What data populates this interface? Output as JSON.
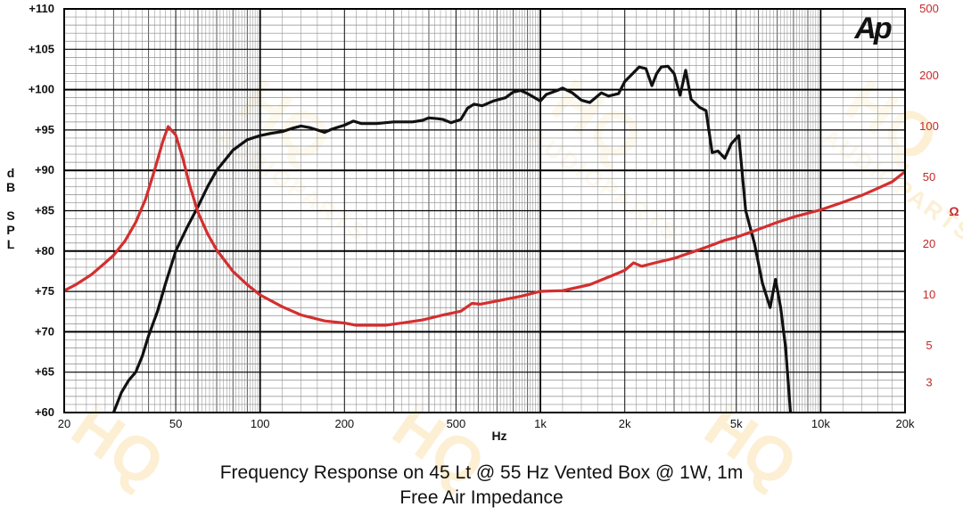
{
  "chart_data": {
    "type": "line",
    "title": "Frequency Response on 45 Lt @ 55 Hz Vented Box @ 1W, 1m",
    "subtitle": "Free Air Impedance",
    "xlabel": "Hz",
    "ylabel": "dB SPL",
    "y2label": "Ω",
    "xscale": "log",
    "xlim": [
      20,
      20000
    ],
    "ylim": [
      60,
      110
    ],
    "y2scale": "log",
    "y2lim": [
      2,
      500
    ],
    "grid": true,
    "x_ticks": [
      {
        "value": 20,
        "label": "20"
      },
      {
        "value": 50,
        "label": "50"
      },
      {
        "value": 100,
        "label": "100"
      },
      {
        "value": 200,
        "label": "200"
      },
      {
        "value": 500,
        "label": "500"
      },
      {
        "value": 1000,
        "label": "1k"
      },
      {
        "value": 2000,
        "label": "2k"
      },
      {
        "value": 5000,
        "label": "5k"
      },
      {
        "value": 10000,
        "label": "10k"
      },
      {
        "value": 20000,
        "label": "20k"
      }
    ],
    "y_ticks": [
      {
        "value": 60,
        "label": "+60"
      },
      {
        "value": 65,
        "label": "+65"
      },
      {
        "value": 70,
        "label": "+70"
      },
      {
        "value": 75,
        "label": "+75"
      },
      {
        "value": 80,
        "label": "+80"
      },
      {
        "value": 85,
        "label": "+85"
      },
      {
        "value": 90,
        "label": "+90"
      },
      {
        "value": 95,
        "label": "+95"
      },
      {
        "value": 100,
        "label": "+100"
      },
      {
        "value": 105,
        "label": "+105"
      },
      {
        "value": 110,
        "label": "+110"
      }
    ],
    "y2_ticks": [
      {
        "value": 3,
        "label": "3"
      },
      {
        "value": 5,
        "label": "5"
      },
      {
        "value": 10,
        "label": "10"
      },
      {
        "value": 20,
        "label": "20"
      },
      {
        "value": 50,
        "label": "50"
      },
      {
        "value": 100,
        "label": "100"
      },
      {
        "value": 200,
        "label": "200"
      },
      {
        "value": 500,
        "label": "500"
      }
    ],
    "series": [
      {
        "color": "#111111",
        "axis": "left",
        "points": [
          [
            30,
            60
          ],
          [
            32,
            62.5
          ],
          [
            34,
            64
          ],
          [
            36,
            65
          ],
          [
            38,
            67
          ],
          [
            40,
            69.5
          ],
          [
            43,
            72.5
          ],
          [
            46,
            76
          ],
          [
            50,
            80
          ],
          [
            55,
            83
          ],
          [
            60,
            85.5
          ],
          [
            65,
            88
          ],
          [
            70,
            90
          ],
          [
            80,
            92.5
          ],
          [
            90,
            93.8
          ],
          [
            100,
            94.3
          ],
          [
            110,
            94.6
          ],
          [
            120,
            94.8
          ],
          [
            130,
            95.2
          ],
          [
            140,
            95.5
          ],
          [
            150,
            95.3
          ],
          [
            160,
            95.0
          ],
          [
            170,
            94.7
          ],
          [
            180,
            95.1
          ],
          [
            200,
            95.6
          ],
          [
            215,
            96.1
          ],
          [
            230,
            95.8
          ],
          [
            260,
            95.8
          ],
          [
            280,
            95.9
          ],
          [
            300,
            96.0
          ],
          [
            350,
            96.0
          ],
          [
            380,
            96.2
          ],
          [
            400,
            96.5
          ],
          [
            430,
            96.4
          ],
          [
            450,
            96.3
          ],
          [
            480,
            95.9
          ],
          [
            520,
            96.3
          ],
          [
            550,
            97.7
          ],
          [
            580,
            98.2
          ],
          [
            620,
            98.0
          ],
          [
            680,
            98.6
          ],
          [
            750,
            99.0
          ],
          [
            800,
            99.7
          ],
          [
            850,
            99.9
          ],
          [
            900,
            99.5
          ],
          [
            1000,
            98.6
          ],
          [
            1050,
            99.4
          ],
          [
            1150,
            99.9
          ],
          [
            1200,
            100.2
          ],
          [
            1300,
            99.6
          ],
          [
            1400,
            98.7
          ],
          [
            1500,
            98.4
          ],
          [
            1650,
            99.6
          ],
          [
            1750,
            99.2
          ],
          [
            1900,
            99.5
          ],
          [
            2000,
            101.0
          ],
          [
            2150,
            102.1
          ],
          [
            2250,
            102.8
          ],
          [
            2380,
            102.6
          ],
          [
            2500,
            100.5
          ],
          [
            2600,
            102.0
          ],
          [
            2700,
            102.8
          ],
          [
            2850,
            102.9
          ],
          [
            3000,
            102.0
          ],
          [
            3150,
            99.3
          ],
          [
            3300,
            102.4
          ],
          [
            3450,
            98.8
          ],
          [
            3700,
            97.8
          ],
          [
            3900,
            97.4
          ],
          [
            4100,
            92.2
          ],
          [
            4300,
            92.4
          ],
          [
            4550,
            91.5
          ],
          [
            4800,
            93.3
          ],
          [
            5100,
            94.3
          ],
          [
            5400,
            85.0
          ],
          [
            5800,
            81.0
          ],
          [
            6200,
            76.0
          ],
          [
            6600,
            73.0
          ],
          [
            6900,
            76.5
          ],
          [
            7200,
            73.0
          ],
          [
            7500,
            68.0
          ],
          [
            7800,
            60.0
          ]
        ]
      },
      {
        "color": "#d32f2f",
        "axis": "right",
        "points": [
          [
            20,
            10.6
          ],
          [
            22,
            11.5
          ],
          [
            25,
            13.2
          ],
          [
            28,
            15.5
          ],
          [
            30,
            17.2
          ],
          [
            33,
            21.0
          ],
          [
            36,
            27.0
          ],
          [
            39,
            37.0
          ],
          [
            42,
            55.0
          ],
          [
            45,
            82.0
          ],
          [
            47,
            100.0
          ],
          [
            50,
            89.0
          ],
          [
            53,
            65.0
          ],
          [
            56,
            45.0
          ],
          [
            60,
            31.0
          ],
          [
            65,
            23.0
          ],
          [
            70,
            18.5
          ],
          [
            80,
            13.8
          ],
          [
            90,
            11.5
          ],
          [
            100,
            10.0
          ],
          [
            120,
            8.5
          ],
          [
            140,
            7.6
          ],
          [
            170,
            7.0
          ],
          [
            200,
            6.8
          ],
          [
            220,
            6.6
          ],
          [
            280,
            6.6
          ],
          [
            320,
            6.8
          ],
          [
            380,
            7.1
          ],
          [
            450,
            7.6
          ],
          [
            520,
            8.0
          ],
          [
            570,
            8.9
          ],
          [
            610,
            8.8
          ],
          [
            700,
            9.2
          ],
          [
            850,
            9.8
          ],
          [
            1000,
            10.5
          ],
          [
            1200,
            10.6
          ],
          [
            1500,
            11.5
          ],
          [
            1800,
            13.0
          ],
          [
            2000,
            14.0
          ],
          [
            2150,
            15.5
          ],
          [
            2300,
            14.8
          ],
          [
            2600,
            15.6
          ],
          [
            3000,
            16.5
          ],
          [
            3500,
            18.0
          ],
          [
            4000,
            19.5
          ],
          [
            4500,
            21.0
          ],
          [
            5000,
            22.0
          ],
          [
            6000,
            24.5
          ],
          [
            7000,
            27.0
          ],
          [
            8000,
            29.0
          ],
          [
            10000,
            32.0
          ],
          [
            12000,
            35.5
          ],
          [
            14000,
            39.0
          ],
          [
            16000,
            43.0
          ],
          [
            18000,
            47.0
          ],
          [
            20000,
            54.0
          ]
        ]
      }
    ]
  },
  "brand": {
    "logo_text": "Ap",
    "watermark_text": "HQ",
    "watermark_sub": "AUDIOPARTS",
    "watermark_color": "#f6c766"
  }
}
